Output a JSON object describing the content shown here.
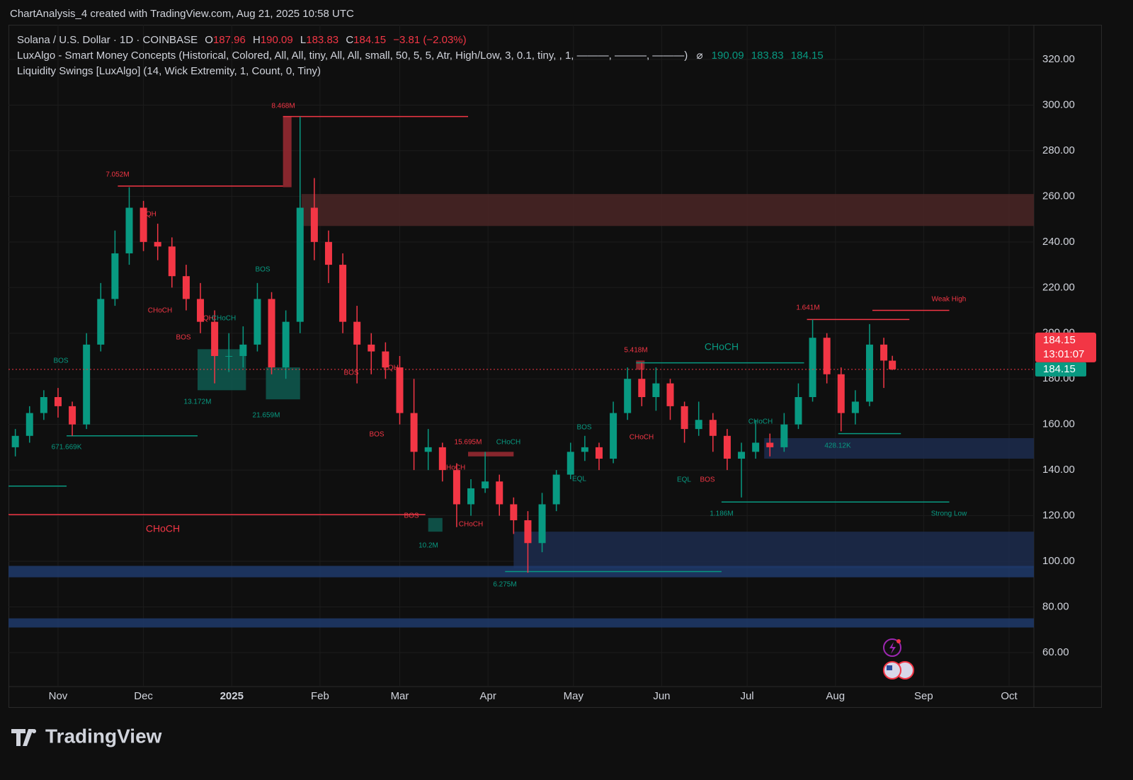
{
  "header": {
    "caption": "ChartAnalysis_4 created with TradingView.com, Aug 21, 2025 10:58 UTC",
    "symbol": "Solana / U.S. Dollar · 1D · COINBASE",
    "ohlc_letters": [
      "O",
      "H",
      "L",
      "C"
    ],
    "change": "−3.81 (−2.03%)",
    "indicator_1": "LuxAlgo - Smart Money Concepts (Historical, Colored, All, All, tiny, All, All, small, 50, 5, 5, Atr, High/Low, 3, 0.1, tiny, , 1, ———, ———, ———)",
    "indicator_1_symbol": "⌀",
    "indicator_values": [
      190.09,
      183.83,
      184.15
    ],
    "indicator_2": "Liquidity Swings [LuxAlgo] (14, Wick Extremity, 1, Count, 0, Tiny)",
    "countdown": "13:01:07"
  },
  "chart_data": {
    "type": "candlestick",
    "up_color": "#089981",
    "down_color": "#f23645",
    "x": [
      -15,
      -10,
      -5,
      0,
      5,
      10,
      15,
      20,
      25,
      30,
      35,
      40,
      45,
      50,
      55,
      60,
      65,
      70,
      75,
      80,
      85,
      90,
      95,
      100,
      105,
      110,
      115,
      120,
      125,
      130,
      135,
      140,
      145,
      150,
      155,
      160,
      165,
      170,
      175,
      180,
      185,
      190,
      195,
      200,
      205,
      210,
      215,
      220,
      225,
      230,
      235,
      240,
      245,
      250,
      255,
      260,
      265,
      270,
      275,
      280,
      285,
      290,
      293
    ],
    "open": [
      150,
      155,
      165,
      172,
      168,
      160,
      195,
      215,
      235,
      255,
      240,
      238,
      225,
      215,
      205,
      190,
      190,
      195,
      215,
      185,
      205,
      255,
      240,
      230,
      205,
      195,
      192,
      185,
      165,
      148,
      150,
      140,
      125,
      132,
      135,
      125,
      118,
      108,
      125,
      138,
      148,
      150,
      145,
      165,
      180,
      172,
      178,
      168,
      158,
      162,
      155,
      145,
      148,
      152,
      150,
      160,
      172,
      198,
      182,
      165,
      170,
      195,
      187.96
    ],
    "high": [
      158,
      168,
      175,
      176,
      170,
      200,
      222,
      245,
      264,
      258,
      248,
      242,
      230,
      222,
      210,
      200,
      203,
      222,
      218,
      210,
      295,
      268,
      245,
      235,
      212,
      200,
      196,
      190,
      180,
      158,
      152,
      143,
      136,
      148,
      138,
      128,
      122,
      130,
      140,
      152,
      155,
      152,
      170,
      185,
      187,
      185,
      180,
      170,
      170,
      165,
      158,
      152,
      162,
      156,
      165,
      178,
      206,
      200,
      185,
      175,
      204,
      198,
      190.09
    ],
    "low": [
      146,
      152,
      162,
      163,
      155,
      158,
      192,
      212,
      230,
      236,
      232,
      220,
      210,
      200,
      178,
      183,
      185,
      192,
      182,
      180,
      200,
      232,
      222,
      200,
      178,
      182,
      180,
      160,
      140,
      140,
      135,
      115,
      120,
      130,
      120,
      112,
      95,
      104,
      122,
      136,
      144,
      140,
      143,
      162,
      168,
      166,
      162,
      152,
      155,
      148,
      140,
      128,
      145,
      146,
      148,
      158,
      170,
      178,
      157,
      160,
      168,
      176,
      183.83
    ],
    "close": [
      155,
      165,
      172,
      168,
      160,
      195,
      215,
      235,
      255,
      240,
      238,
      225,
      215,
      205,
      190,
      190,
      195,
      215,
      185,
      205,
      255,
      240,
      230,
      205,
      195,
      192,
      185,
      165,
      148,
      150,
      140,
      125,
      132,
      135,
      125,
      118,
      108,
      125,
      138,
      148,
      150,
      145,
      165,
      180,
      172,
      178,
      168,
      158,
      162,
      155,
      145,
      148,
      152,
      150,
      160,
      172,
      198,
      182,
      165,
      170,
      195,
      188,
      184.15
    ],
    "xlim": [
      -17.4,
      342.7
    ],
    "xticks": [
      {
        "value": 0,
        "label": "Nov"
      },
      {
        "value": 30,
        "label": "Dec"
      },
      {
        "value": 61,
        "label": "2025"
      },
      {
        "value": 92,
        "label": "Feb"
      },
      {
        "value": 120,
        "label": "Mar"
      },
      {
        "value": 151,
        "label": "Apr"
      },
      {
        "value": 181,
        "label": "May"
      },
      {
        "value": 212,
        "label": "Jun"
      },
      {
        "value": 242,
        "label": "Jul"
      },
      {
        "value": 273,
        "label": "Aug"
      },
      {
        "value": 304,
        "label": "Sep"
      },
      {
        "value": 334,
        "label": "Oct"
      }
    ],
    "ylim": [
      45.1,
      335.2
    ],
    "yticks": [
      {
        "value": 60,
        "label": "60.00"
      },
      {
        "value": 80,
        "label": "80.00"
      },
      {
        "value": 100,
        "label": "100.00"
      },
      {
        "value": 120,
        "label": "120.00"
      },
      {
        "value": 140,
        "label": "140.00"
      },
      {
        "value": 160,
        "label": "160.00"
      },
      {
        "value": 180,
        "label": "180.00"
      },
      {
        "value": 200,
        "label": "200.00"
      },
      {
        "value": 220,
        "label": "220.00"
      },
      {
        "value": 240,
        "label": "240.00"
      },
      {
        "value": 260,
        "label": "260.00"
      },
      {
        "value": 280,
        "label": "280.00"
      },
      {
        "value": 300,
        "label": "300.00"
      },
      {
        "value": 320,
        "label": "320.00"
      }
    ],
    "grid": true,
    "zones": [
      {
        "low": 247,
        "high": 261,
        "from": 85.5,
        "to": 342.7,
        "color": "#4a2626"
      },
      {
        "low": 145,
        "high": 154,
        "from": 248,
        "to": 342.7,
        "color": "#1c2b4d"
      },
      {
        "low": 97,
        "high": 113,
        "from": 160,
        "to": 342.7,
        "color": "#1c2b4d"
      },
      {
        "low": 93,
        "high": 98,
        "from": -17.4,
        "to": 342.7,
        "color": "#1f3a6b"
      },
      {
        "low": 71,
        "high": 75,
        "from": -17.4,
        "to": 342.7,
        "color": "#1f3a6b"
      },
      {
        "low": 175,
        "high": 193,
        "from": 49,
        "to": 66,
        "color": "#0e5a50"
      },
      {
        "low": 171,
        "high": 185,
        "from": 73,
        "to": 85,
        "color": "#0e5a50"
      },
      {
        "low": 113,
        "high": 119,
        "from": 130,
        "to": 135,
        "color": "#0e5a50"
      },
      {
        "low": 146,
        "high": 148,
        "from": 144,
        "to": 160,
        "color": "#9c2a32"
      },
      {
        "low": 184,
        "high": 188,
        "from": 203,
        "to": 206,
        "color": "#9c2a32"
      },
      {
        "low": 264,
        "high": 295,
        "from": 79,
        "to": 82,
        "color": "#9c2a32"
      }
    ],
    "levels": [
      {
        "value": 264.5,
        "from": 21,
        "to": 79,
        "color": "#f23645"
      },
      {
        "value": 295,
        "from": 79,
        "to": 144,
        "color": "#f23645"
      },
      {
        "value": 120.5,
        "from": -17.4,
        "to": 129,
        "color": "#f23645"
      },
      {
        "value": 206,
        "from": 263,
        "to": 299,
        "color": "#f23645"
      },
      {
        "value": 210,
        "from": 286,
        "to": 313,
        "color": "#f23645"
      },
      {
        "value": 126,
        "from": 233,
        "to": 313,
        "color": "#089981"
      },
      {
        "value": 155,
        "from": 3,
        "to": 49,
        "color": "#089981"
      },
      {
        "value": 133,
        "from": -17.4,
        "to": 3,
        "color": "#089981"
      },
      {
        "value": 187,
        "from": 203,
        "to": 262,
        "color": "#089981"
      },
      {
        "value": 95.5,
        "from": 157,
        "to": 233,
        "color": "#089981"
      },
      {
        "value": 156,
        "from": 274,
        "to": 296,
        "color": "#089981"
      }
    ],
    "annotations": [
      "8.468M",
      "7.052M",
      "EQH",
      "BOS",
      "CHoCH",
      "EQH",
      "CHoCH",
      "BOS",
      "BOS",
      "13.172M",
      "21.659M",
      "671.669K",
      "CHoCH",
      "EQH",
      "BOS",
      "BOS",
      "15.695M",
      "CHoCH",
      "CHoCH",
      "BOS",
      "CHoCH",
      "10.2M",
      "6.275M",
      "5.418M",
      "CHoCH",
      "BOS",
      "CHoCH",
      "EQL",
      "EQL",
      "BOS",
      "1.186M",
      "CHoCH",
      "428.12K",
      "1.641M",
      "Weak High",
      "Strong Low"
    ]
  },
  "footer": {
    "brand": "TradingView"
  }
}
